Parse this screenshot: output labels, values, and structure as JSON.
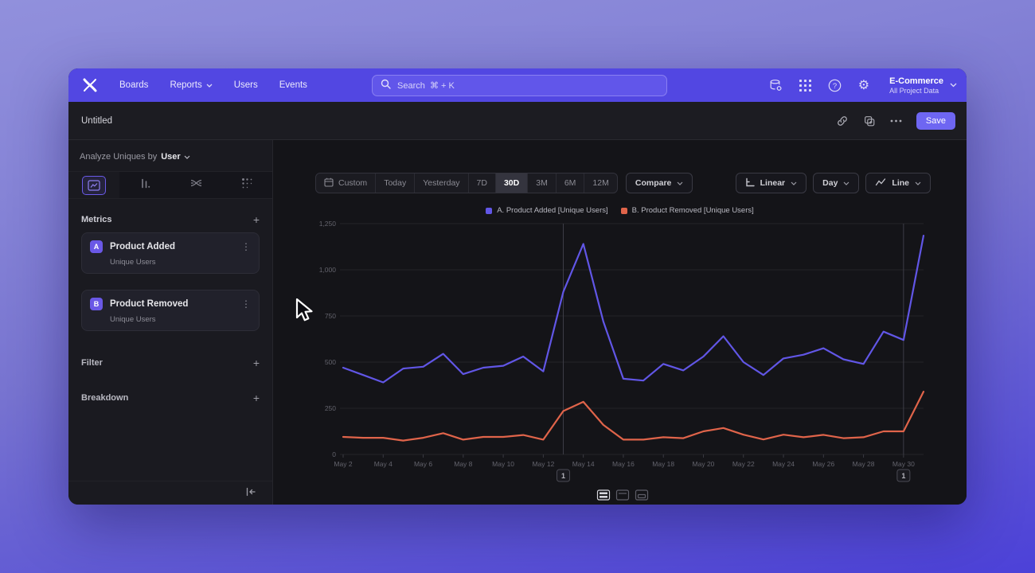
{
  "nav": {
    "items": [
      "Boards",
      "Reports",
      "Users",
      "Events"
    ],
    "search_placeholder": "Search  ⌘ + K",
    "project": {
      "name": "E-Commerce",
      "subtitle": "All Project Data"
    }
  },
  "report_bar": {
    "title": "Untitled",
    "save_label": "Save"
  },
  "sidebar": {
    "analyze_label": "Analyze Uniques by",
    "analyze_value": "User",
    "metrics_header": "Metrics",
    "metrics": [
      {
        "badge": "A",
        "name": "Product Added",
        "subtitle": "Unique Users"
      },
      {
        "badge": "B",
        "name": "Product Removed",
        "subtitle": "Unique Users"
      }
    ],
    "filter_label": "Filter",
    "breakdown_label": "Breakdown"
  },
  "toolbar": {
    "ranges": [
      "Custom",
      "Today",
      "Yesterday",
      "7D",
      "30D",
      "3M",
      "6M",
      "12M"
    ],
    "selected_range": "30D",
    "compare_label": "Compare",
    "scale_label": "Linear",
    "interval_label": "Day",
    "chart_type_label": "Line"
  },
  "chart_data": {
    "type": "line",
    "x": [
      "May 2",
      "May 3",
      "May 4",
      "May 5",
      "May 6",
      "May 7",
      "May 8",
      "May 9",
      "May 10",
      "May 11",
      "May 12",
      "May 13",
      "May 14",
      "May 15",
      "May 16",
      "May 17",
      "May 18",
      "May 19",
      "May 20",
      "May 21",
      "May 22",
      "May 23",
      "May 24",
      "May 25",
      "May 26",
      "May 27",
      "May 28",
      "May 29",
      "May 30",
      "May 31"
    ],
    "series": [
      {
        "name": "A. Product Added [Unique Users]",
        "color": "#6156E6",
        "values": [
          470,
          430,
          390,
          465,
          475,
          545,
          435,
          470,
          480,
          530,
          450,
          880,
          1140,
          720,
          410,
          400,
          490,
          455,
          530,
          640,
          500,
          430,
          520,
          540,
          575,
          515,
          490,
          665,
          620,
          1185
        ]
      },
      {
        "name": "B. Product Removed [Unique Users]",
        "color": "#E0644A",
        "values": [
          95,
          90,
          90,
          75,
          90,
          115,
          80,
          95,
          95,
          105,
          80,
          235,
          285,
          160,
          80,
          80,
          93,
          88,
          125,
          143,
          107,
          81,
          107,
          93,
          106,
          88,
          93,
          125,
          125,
          340
        ]
      }
    ],
    "ylim": [
      0,
      1250
    ],
    "yticks": [
      0,
      250,
      500,
      750,
      1000,
      1250
    ],
    "x_tick_every": 2,
    "legend_position": "top-center",
    "annotations": [
      {
        "index": 11,
        "label": "1",
        "date": "May 13"
      },
      {
        "index": 28,
        "label": "1",
        "date": "May 30"
      }
    ]
  },
  "colors": {
    "nav_accent": "#5247E2",
    "save_button": "#6E66F2",
    "series_a": "#6156E6",
    "series_b": "#E0644A",
    "panel_dark": "#141418",
    "sidebar_bg": "#1A1A20"
  }
}
